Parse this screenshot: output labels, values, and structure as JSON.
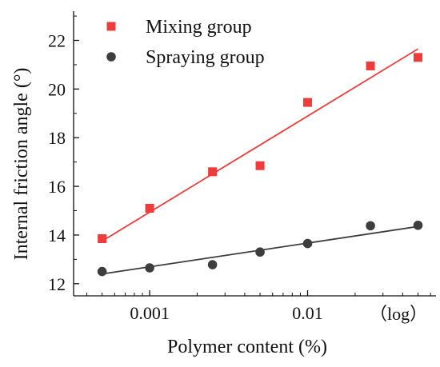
{
  "chart_data": {
    "type": "scatter",
    "title": "",
    "xlabel": "Polymer content (%)",
    "ylabel": "Internal friction angle (°)",
    "x_scale": "log",
    "x_annotation": "（log）",
    "xlim": [
      0.00033,
      0.065
    ],
    "ylim": [
      11.5,
      23.2
    ],
    "x_ticks": [
      0.001,
      0.01
    ],
    "x_tick_labels": [
      "0.001",
      "0.01"
    ],
    "y_ticks": [
      12,
      14,
      16,
      18,
      20,
      22
    ],
    "y_tick_labels": [
      "12",
      "14",
      "16",
      "18",
      "20",
      "22"
    ],
    "grid": false,
    "legend_position": "top-left",
    "series": [
      {
        "name": "Mixing group",
        "marker": "square",
        "color": "#ee3b3b",
        "x": [
          0.0005,
          0.001,
          0.0025,
          0.005,
          0.01,
          0.025,
          0.05
        ],
        "y": [
          13.85,
          15.1,
          16.6,
          16.85,
          19.45,
          20.95,
          21.3
        ],
        "fit_line": {
          "x": [
            0.0005,
            0.05
          ],
          "y": [
            13.75,
            21.65
          ]
        }
      },
      {
        "name": "Spraying group",
        "marker": "circle",
        "color": "#3d3d3d",
        "x": [
          0.0005,
          0.001,
          0.0025,
          0.005,
          0.01,
          0.025,
          0.05
        ],
        "y": [
          12.5,
          12.65,
          12.78,
          13.3,
          13.65,
          14.38,
          14.4
        ],
        "fit_line": {
          "x": [
            0.0005,
            0.05
          ],
          "y": [
            12.4,
            14.35
          ]
        }
      }
    ]
  }
}
